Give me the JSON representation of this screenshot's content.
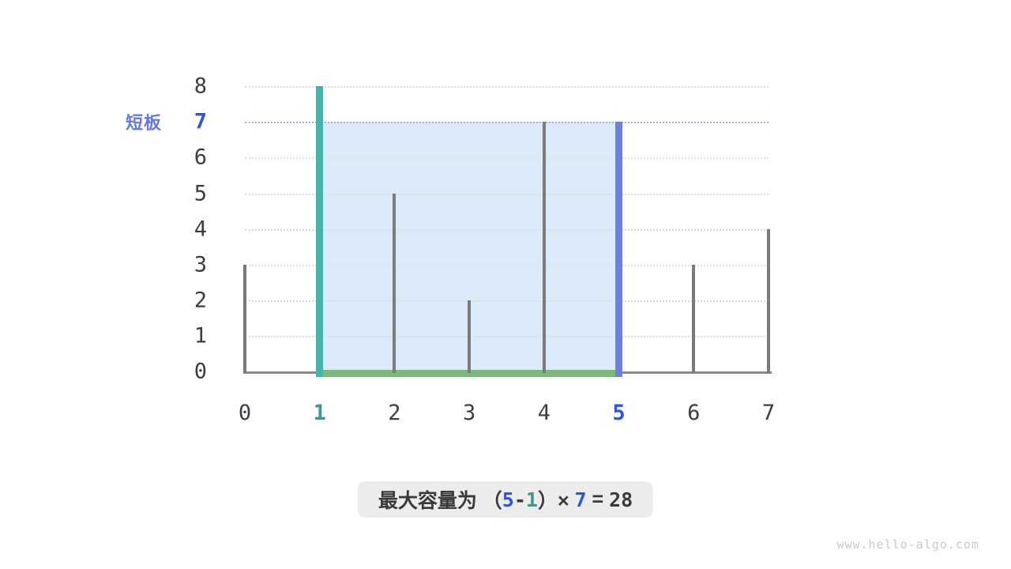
{
  "chart_data": {
    "type": "bar",
    "title": "",
    "xlabel": "",
    "ylabel": "",
    "x": [
      0,
      1,
      2,
      3,
      4,
      5,
      6,
      7
    ],
    "values": [
      3,
      8,
      5,
      2,
      7,
      7,
      3,
      4
    ],
    "y_ticks": [
      0,
      1,
      2,
      3,
      4,
      5,
      6,
      7,
      8
    ],
    "ylim": [
      0,
      8
    ],
    "grid": "horizontal-dotted",
    "legend": "none",
    "highlight": {
      "left_index": 1,
      "right_index": 5,
      "water_level": 7,
      "area": 28,
      "left_board_color": "teal",
      "right_board_color": "blue",
      "water_region": "light-blue fill from x=1 to x=5 up to y=7",
      "base_line": "green segment on x-axis from x=1 to x=5",
      "water_line": "blue dotted horizontal line at y=7"
    }
  },
  "annotations": {
    "short_board_label": "短板"
  },
  "formula": {
    "segments": [
      {
        "text": "最大容量为 （",
        "role": "caption"
      },
      {
        "text": "5",
        "role": "right-index"
      },
      {
        "text": "-",
        "role": "minus"
      },
      {
        "text": "1",
        "role": "left-index"
      },
      {
        "text": "）× ",
        "role": "times"
      },
      {
        "text": "7",
        "role": "height"
      },
      {
        "text": " = ",
        "role": "equals"
      },
      {
        "text": "28",
        "role": "result"
      }
    ]
  },
  "watermark": "www.hello-algo.com",
  "colors": {
    "teal_bar": "#47B2AA",
    "blue_bar": "#6B7FE0",
    "water_fill": "#DCEBFA",
    "green_base": "#7CB87C",
    "gray_bar": "#7B7B7B",
    "axis": "#8A8A8A",
    "grid": "#DCDCDC",
    "water_line": "#A3B1EE",
    "tick_text": "#3A3E44",
    "tick_blue": "#2F55E0",
    "tick_teal": "#3F968E",
    "short_board_label": "#6578E2",
    "formula_text": "#3A3A3A",
    "formula_bg": "#ECECEC",
    "watermark": "#C9C9C9"
  }
}
